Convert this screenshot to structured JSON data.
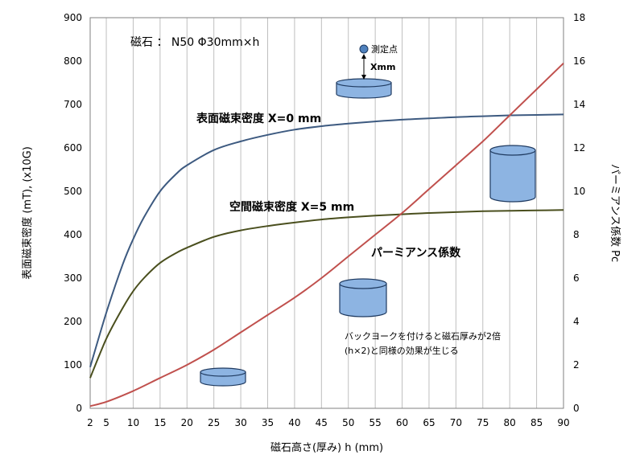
{
  "chart_data": {
    "type": "line",
    "title": "",
    "magnet_spec": "磁石 ： N50 Φ30mm×h",
    "xlabel": "磁石高さ(厚み) h (mm)",
    "ylabel_left": "表面磁束密度 (mT), (x10G)",
    "ylabel_right": "パーミアンス係数 Pc",
    "x_ticks": [
      2,
      5,
      10,
      15,
      20,
      25,
      30,
      35,
      40,
      45,
      50,
      55,
      60,
      65,
      70,
      75,
      80,
      85,
      90
    ],
    "ylim_left": [
      0,
      900
    ],
    "yticks_left": [
      0,
      100,
      200,
      300,
      400,
      500,
      600,
      700,
      800,
      900
    ],
    "ylim_right": [
      0,
      18
    ],
    "yticks_right": [
      0,
      2,
      4,
      6,
      8,
      10,
      12,
      14,
      16,
      18
    ],
    "grid": "vertical",
    "series": [
      {
        "name": "表面磁束密度 X=0 mm",
        "axis": "left",
        "color": "#3d5a80",
        "x": [
          2,
          5,
          8,
          10,
          12,
          15,
          18,
          20,
          25,
          30,
          35,
          40,
          45,
          50,
          55,
          60,
          65,
          70,
          75,
          80,
          85,
          90
        ],
        "y": [
          95,
          220,
          330,
          390,
          440,
          500,
          540,
          560,
          595,
          615,
          630,
          642,
          650,
          656,
          661,
          665,
          668,
          671,
          673,
          675,
          676,
          677
        ]
      },
      {
        "name": "空間磁束密度 X=5 mm",
        "axis": "left",
        "color": "#4a4f1e",
        "x": [
          2,
          5,
          8,
          10,
          12,
          15,
          18,
          20,
          25,
          30,
          35,
          40,
          45,
          50,
          55,
          60,
          65,
          70,
          75,
          80,
          85,
          90
        ],
        "y": [
          70,
          160,
          230,
          270,
          300,
          335,
          358,
          370,
          395,
          410,
          420,
          428,
          435,
          440,
          444,
          447,
          450,
          452,
          454,
          455,
          456,
          457
        ]
      },
      {
        "name": "パーミアンス係数",
        "axis": "right",
        "color": "#c0504d",
        "x": [
          2,
          5,
          10,
          15,
          20,
          25,
          30,
          35,
          40,
          45,
          50,
          55,
          60,
          65,
          70,
          75,
          80,
          85,
          90
        ],
        "y": [
          0.1,
          0.3,
          0.8,
          1.4,
          2.0,
          2.7,
          3.5,
          4.3,
          5.1,
          6.0,
          7.0,
          8.0,
          9.0,
          10.1,
          11.2,
          12.3,
          13.5,
          14.7,
          15.9
        ]
      }
    ],
    "annotations": {
      "measure_point": "測定点",
      "gap": "Xmm",
      "yoke_note_line1": "バックヨークを付けると磁石厚みが2倍",
      "yoke_note_line2": "(h×2)と同様の効果が生じる"
    },
    "cylinder_color": "#8db4e2"
  }
}
